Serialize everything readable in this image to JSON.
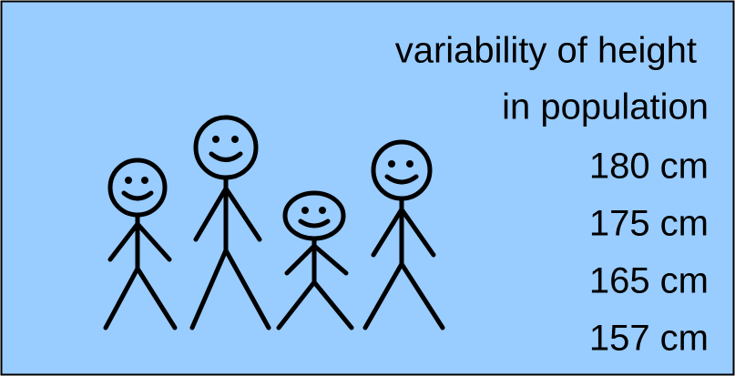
{
  "caption": {
    "lines": [
      "variability of height",
      "in population"
    ]
  },
  "heights": [
    "180 cm",
    "175 cm",
    "165 cm",
    "157 cm"
  ]
}
